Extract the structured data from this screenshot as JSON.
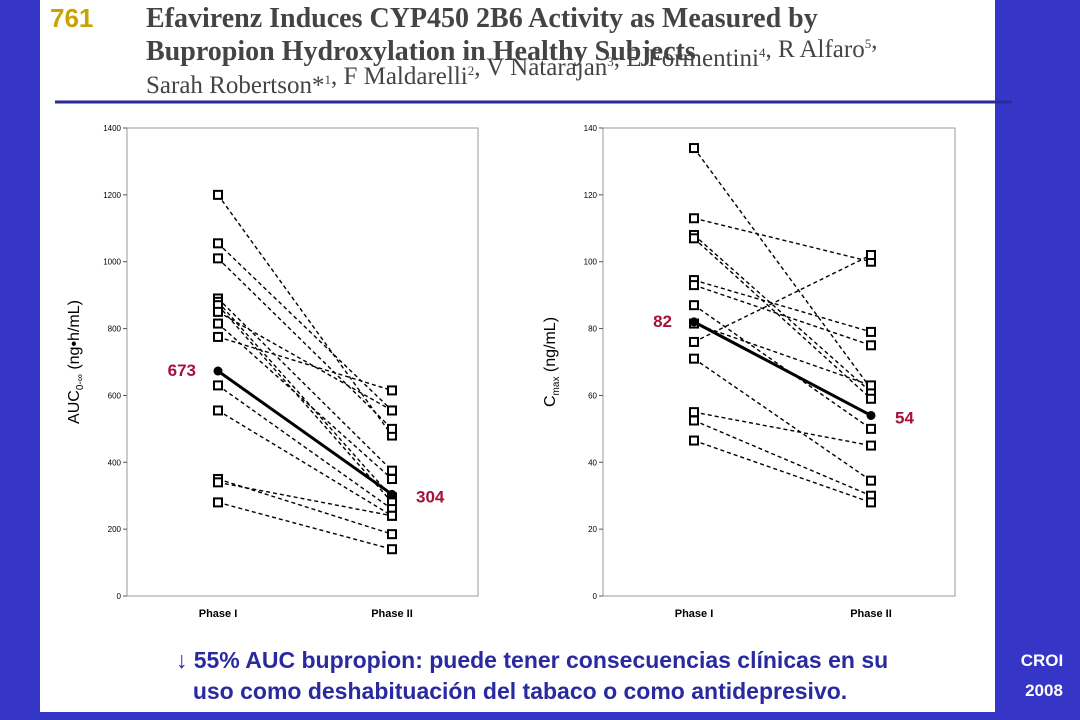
{
  "header": {
    "number": "761",
    "title": [
      "Efavirenz Induces CYP450 2B6 Activity as Measured by",
      "Bupropion Hydroxylation in Healthy Subjects"
    ],
    "authors": [
      {
        "name": "Sarah Robertson*",
        "sup": "1"
      },
      {
        "name": ", F Maldarelli",
        "sup": "2"
      },
      {
        "name": ", V Natarajan",
        "sup": "3"
      },
      {
        "name": ", E Formentini",
        "sup": "4"
      },
      {
        "name": ", R Alfaro",
        "sup": "5"
      },
      {
        "name": ",",
        "sup": ""
      }
    ]
  },
  "chart_data": [
    {
      "type": "line",
      "categories": [
        "Phase I",
        "Phase II"
      ],
      "ylabel": [
        "AUC",
        "0-∞",
        " (ng•h/mL)"
      ],
      "ylim": [
        0,
        1400
      ],
      "yticks": [
        0,
        200,
        400,
        600,
        800,
        1000,
        1200,
        1400
      ],
      "label_color": "#a8103a",
      "series": [
        {
          "color": "#000000",
          "style": "dashed",
          "marker": "square",
          "values": [
            1200,
            480
          ]
        },
        {
          "color": "#000000",
          "style": "dashed",
          "marker": "square",
          "values": [
            1055,
            555
          ]
        },
        {
          "color": "#000000",
          "style": "dashed",
          "marker": "square",
          "values": [
            1010,
            500
          ]
        },
        {
          "color": "#000000",
          "style": "dashed",
          "marker": "square",
          "values": [
            890,
            375
          ]
        },
        {
          "color": "#000000",
          "style": "dashed",
          "marker": "square",
          "values": [
            880,
            295
          ]
        },
        {
          "color": "#000000",
          "style": "dashed",
          "marker": "square",
          "values": [
            870,
            280
          ]
        },
        {
          "color": "#000000",
          "style": "dashed",
          "marker": "square",
          "values": [
            850,
            555
          ]
        },
        {
          "color": "#000000",
          "style": "dashed",
          "marker": "square",
          "values": [
            815,
            350
          ]
        },
        {
          "color": "#000000",
          "style": "dashed",
          "marker": "square",
          "values": [
            775,
            615
          ]
        },
        {
          "color": "#000000",
          "style": "dashed",
          "marker": "square",
          "values": [
            630,
            260
          ]
        },
        {
          "color": "#000000",
          "style": "dashed",
          "marker": "square",
          "values": [
            555,
            240
          ]
        },
        {
          "color": "#000000",
          "style": "dashed",
          "marker": "square",
          "values": [
            350,
            185
          ]
        },
        {
          "color": "#000000",
          "style": "dashed",
          "marker": "square",
          "values": [
            340,
            240
          ]
        },
        {
          "color": "#000000",
          "style": "dashed",
          "marker": "square",
          "values": [
            280,
            140
          ]
        },
        {
          "color": "#000000",
          "style": "solid",
          "marker": "circle",
          "labels": true,
          "values": [
            673,
            304
          ]
        }
      ]
    },
    {
      "type": "line",
      "categories": [
        "Phase I",
        "Phase II"
      ],
      "ylabel": [
        "C",
        "max",
        " (ng/mL)"
      ],
      "ylim": [
        0,
        140
      ],
      "yticks": [
        0,
        20,
        40,
        60,
        80,
        100,
        120,
        140
      ],
      "label_color": "#a8103a",
      "series": [
        {
          "color": "#000000",
          "style": "dashed",
          "marker": "square",
          "values": [
            134,
            62
          ]
        },
        {
          "color": "#000000",
          "style": "dashed",
          "marker": "square",
          "values": [
            113,
            100
          ]
        },
        {
          "color": "#000000",
          "style": "dashed",
          "marker": "square",
          "values": [
            108,
            61
          ]
        },
        {
          "color": "#000000",
          "style": "dashed",
          "marker": "square",
          "values": [
            107,
            59
          ]
        },
        {
          "color": "#000000",
          "style": "dashed",
          "marker": "square",
          "values": [
            94.5,
            79
          ]
        },
        {
          "color": "#000000",
          "style": "dashed",
          "marker": "square",
          "values": [
            93,
            75
          ]
        },
        {
          "color": "#000000",
          "style": "dashed",
          "marker": "square",
          "values": [
            87,
            50
          ]
        },
        {
          "color": "#000000",
          "style": "dashed",
          "marker": "square",
          "values": [
            81.5,
            63
          ]
        },
        {
          "color": "#000000",
          "style": "dashed",
          "marker": "square",
          "values": [
            76,
            102
          ]
        },
        {
          "color": "#000000",
          "style": "dashed",
          "marker": "square",
          "values": [
            71,
            34.5
          ]
        },
        {
          "color": "#000000",
          "style": "dashed",
          "marker": "square",
          "values": [
            55,
            45
          ]
        },
        {
          "color": "#000000",
          "style": "dashed",
          "marker": "square",
          "values": [
            52.5,
            30
          ]
        },
        {
          "color": "#000000",
          "style": "dashed",
          "marker": "square",
          "values": [
            46.5,
            28
          ]
        },
        {
          "color": "#000000",
          "style": "solid",
          "marker": "circle",
          "labels": true,
          "values": [
            82,
            54
          ]
        }
      ]
    }
  ],
  "footer": {
    "lines": [
      "↓ 55% AUC bupropion: puede tener consecuencias clínicas en su",
      "uso como deshabituación del tabaco o como antidepresivo."
    ],
    "badge": [
      "CROI",
      "2008"
    ]
  }
}
